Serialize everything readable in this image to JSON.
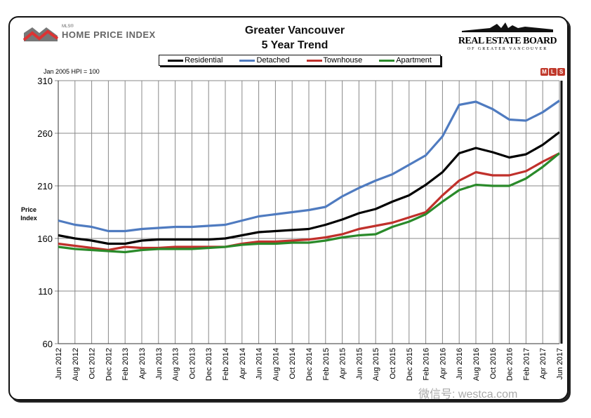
{
  "header": {
    "hpi_logo_small": "MLS®",
    "hpi_logo": "HOME PRICE INDEX",
    "board_logo": "REAL ESTATE BOARD",
    "board_logo_sub": "OF GREATER VANCOUVER",
    "mls_logo": [
      "M",
      "L",
      "S"
    ],
    "watermark": "微信号: westca.com"
  },
  "chart_data": {
    "type": "line",
    "title": "Greater Vancouver",
    "subtitle": "5 Year Trend",
    "note": "Jan 2005 HPI = 100",
    "ylabel": "Price Index",
    "xlabel": "",
    "ylim": [
      60,
      310
    ],
    "yticks": [
      60,
      110,
      160,
      210,
      260,
      310
    ],
    "grid": true,
    "legend_position": "top-center",
    "x": [
      "Jun 2012",
      "Aug 2012",
      "Oct 2012",
      "Dec 2012",
      "Feb 2013",
      "Apr 2013",
      "Jun 2013",
      "Aug 2013",
      "Oct 2013",
      "Dec 2013",
      "Feb 2014",
      "Apr 2014",
      "Jun 2014",
      "Aug 2014",
      "Oct 2014",
      "Dec 2014",
      "Feb 2015",
      "Apr 2015",
      "Jun 2015",
      "Aug 2015",
      "Oct 2015",
      "Dec 2015",
      "Feb 2016",
      "Apr 2016",
      "Jun 2016",
      "Aug 2016",
      "Oct 2016",
      "Dec 2016",
      "Feb 2017",
      "Apr 2017",
      "Jun 2017"
    ],
    "series": [
      {
        "name": "Residential",
        "color": "#000000",
        "values": [
          163,
          160,
          158,
          155,
          155,
          158,
          159,
          159,
          159,
          159,
          160,
          163,
          166,
          167,
          168,
          169,
          173,
          178,
          184,
          188,
          195,
          201,
          211,
          223,
          241,
          246,
          242,
          237,
          240,
          249,
          261
        ]
      },
      {
        "name": "Detached",
        "color": "#4f7bc0",
        "values": [
          177,
          173,
          171,
          167,
          167,
          169,
          170,
          171,
          171,
          172,
          173,
          177,
          181,
          183,
          185,
          187,
          190,
          200,
          208,
          215,
          221,
          230,
          239,
          257,
          287,
          290,
          283,
          273,
          272,
          280,
          291
        ]
      },
      {
        "name": "Townhouse",
        "color": "#c0302b",
        "values": [
          155,
          153,
          151,
          149,
          152,
          151,
          151,
          152,
          152,
          152,
          152,
          155,
          157,
          157,
          158,
          159,
          161,
          164,
          169,
          172,
          175,
          180,
          185,
          201,
          215,
          223,
          220,
          220,
          224,
          233,
          241
        ]
      },
      {
        "name": "Apartment",
        "color": "#2a8a2a",
        "values": [
          152,
          150,
          149,
          148,
          147,
          149,
          150,
          150,
          150,
          151,
          152,
          154,
          155,
          155,
          156,
          156,
          158,
          161,
          163,
          164,
          171,
          176,
          183,
          195,
          206,
          211,
          210,
          210,
          217,
          228,
          241
        ]
      }
    ]
  }
}
